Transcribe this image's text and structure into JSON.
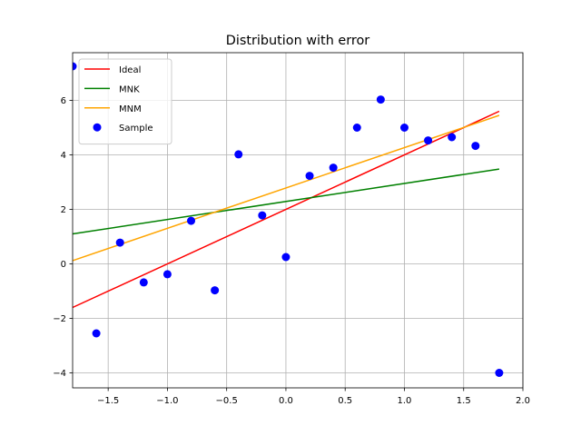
{
  "chart_data": {
    "type": "scatter",
    "title": "Distribution with error",
    "xlabel": "",
    "ylabel": "",
    "xlim": [
      -1.8,
      2.0
    ],
    "ylim": [
      -4.55,
      7.75
    ],
    "xticks": [
      -1.5,
      -1.0,
      -0.5,
      0.0,
      0.5,
      1.0,
      1.5,
      2.0
    ],
    "xtick_labels": [
      "−1.5",
      "−1.0",
      "−0.5",
      "0.0",
      "0.5",
      "1.0",
      "1.5",
      "2.0"
    ],
    "yticks": [
      -4,
      -2,
      0,
      2,
      4,
      6
    ],
    "ytick_labels": [
      "−4",
      "−2",
      "0",
      "2",
      "4",
      "6"
    ],
    "grid": true,
    "legend_position": "top-left",
    "series": [
      {
        "name": "Ideal",
        "kind": "line",
        "color": "#ff0000",
        "x": [
          -1.8,
          1.8
        ],
        "y": [
          -1.6,
          5.6
        ]
      },
      {
        "name": "MNK",
        "kind": "line",
        "color": "#008000",
        "x": [
          -1.8,
          1.8
        ],
        "y": [
          1.1,
          3.48
        ]
      },
      {
        "name": "MNM",
        "kind": "line",
        "color": "#ffa500",
        "x": [
          -1.8,
          1.8
        ],
        "y": [
          0.12,
          5.45
        ]
      },
      {
        "name": "Sample",
        "kind": "scatter",
        "color": "#0000ff",
        "x": [
          -1.8,
          -1.6,
          -1.4,
          -1.2,
          -1.0,
          -0.8,
          -0.6,
          -0.4,
          -0.2,
          0.0,
          0.2,
          0.4,
          0.6,
          0.8,
          1.0,
          1.2,
          1.4,
          1.6,
          1.8
        ],
        "y": [
          7.25,
          -2.55,
          0.78,
          -0.68,
          -0.38,
          1.58,
          -0.97,
          4.02,
          1.78,
          0.25,
          3.23,
          3.53,
          5.0,
          6.03,
          5.0,
          4.53,
          4.65,
          4.33,
          -4.0
        ]
      }
    ]
  }
}
